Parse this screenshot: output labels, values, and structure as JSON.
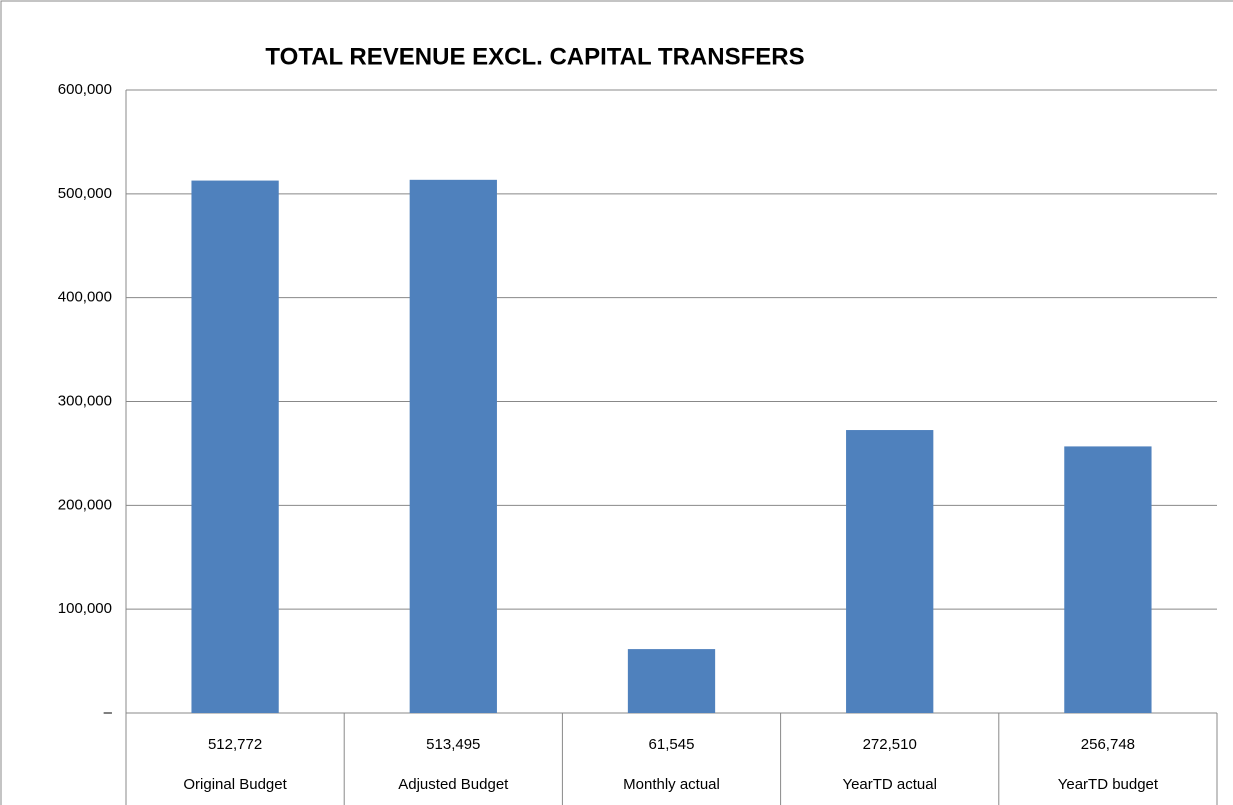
{
  "chart_data": {
    "type": "bar",
    "title": "TOTAL REVENUE EXCL. CAPITAL TRANSFERS",
    "categories": [
      "Original Budget",
      "Adjusted Budget",
      "Monthly actual",
      "YearTD actual",
      "YearTD budget"
    ],
    "values": [
      512772,
      513495,
      61545,
      272510,
      256748
    ],
    "value_labels": [
      "512,772",
      "513,495",
      "61,545",
      "272,510",
      "256,748"
    ],
    "color": "#4f81bd",
    "ylim": [
      0,
      600000
    ],
    "yticks": [
      {
        "value": 0,
        "label": "–"
      },
      {
        "value": 100000,
        "label": "100,000"
      },
      {
        "value": 200000,
        "label": "200,000"
      },
      {
        "value": 300000,
        "label": "300,000"
      },
      {
        "value": 400000,
        "label": "400,000"
      },
      {
        "value": 500000,
        "label": "500,000"
      },
      {
        "value": 600000,
        "label": "600,000"
      }
    ],
    "grid": true
  }
}
